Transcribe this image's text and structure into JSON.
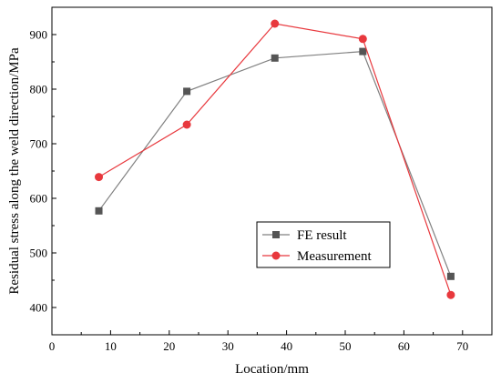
{
  "chart_data": {
    "type": "line",
    "xlabel": "Location/mm",
    "ylabel": "Residual stress along the weld direction/MPa",
    "xlim": [
      0,
      75
    ],
    "ylim": [
      350,
      950
    ],
    "xticks": [
      0,
      10,
      20,
      30,
      40,
      50,
      60,
      70
    ],
    "yticks": [
      400,
      500,
      600,
      700,
      800,
      900
    ],
    "grid": false,
    "legend_position": "center-right",
    "series": [
      {
        "name": "FE result",
        "marker": "square",
        "color": "#808080",
        "marker_color": "#555555",
        "x": [
          8,
          23,
          38,
          53,
          68
        ],
        "y": [
          577,
          796,
          857,
          869,
          457
        ]
      },
      {
        "name": "Measurement",
        "marker": "circle",
        "color": "#e8383d",
        "marker_color": "#e8383d",
        "x": [
          8,
          23,
          38,
          53,
          68
        ],
        "y": [
          639,
          735,
          920,
          892,
          423
        ]
      }
    ]
  }
}
